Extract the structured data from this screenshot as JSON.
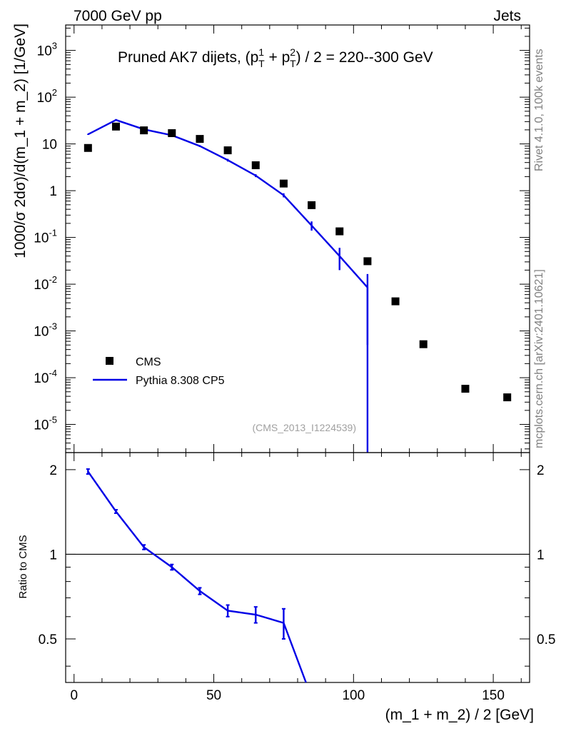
{
  "header": {
    "left": "7000 GeV pp",
    "right": "Jets"
  },
  "side_labels": {
    "top": "Rivet 4.1.0,  100k events",
    "bottom": "mcplots.cern.ch [arXiv:2401.10621]"
  },
  "colors": {
    "cms": "#000000",
    "pythia": "#0000e6",
    "frame": "#000000"
  },
  "chart_data": [
    {
      "type": "scatter",
      "title": "Pruned AK7 dijets, (p_T^1 + p_T^2) / 2 = 220--300 GeV",
      "title_parts": {
        "pre": "Pruned AK7 dijets, (p",
        "sup1": "1",
        "sub1": "T",
        "mid": " + p",
        "sup2": "2",
        "sub2": "T",
        "post": ") / 2 = 220--300 GeV"
      },
      "ylabel": "1000/σ   2dσ)/d(m_1 + m_2) [1/GeV]",
      "xlabel": "",
      "yscale": "log",
      "ylim": [
        2.5e-06,
        3500
      ],
      "xlim": [
        -3,
        163
      ],
      "y_tick_labels": [
        "10^-5",
        "10^-4",
        "10^-3",
        "10^-2",
        "10^-1",
        "1",
        "10",
        "10^2",
        "10^3"
      ],
      "annotation": "(CMS_2013_I1224539)",
      "legend": {
        "position": "lower-left",
        "entries": [
          "CMS",
          "Pythia 8.308 CP5"
        ]
      },
      "series": [
        {
          "name": "CMS",
          "style": "markers",
          "x": [
            5,
            15,
            25,
            35,
            45,
            55,
            65,
            75,
            85,
            95,
            105,
            115,
            125,
            140,
            155
          ],
          "y": [
            8.2,
            23.5,
            19.5,
            17.0,
            12.8,
            7.3,
            3.5,
            1.42,
            0.49,
            0.135,
            0.031,
            0.0043,
            0.00052,
            5.8e-05,
            3.8e-05
          ]
        },
        {
          "name": "Pythia 8.308 CP5",
          "style": "line",
          "x": [
            5,
            15,
            25,
            35,
            45,
            55,
            65,
            75,
            85,
            95,
            105,
            105
          ],
          "y": [
            16.0,
            32.5,
            20.5,
            15.3,
            9.0,
            4.5,
            2.1,
            0.8,
            0.18,
            0.04,
            0.0085,
            2.5e-06
          ],
          "err_low": [
            0.4,
            1.5,
            0.6,
            0.5,
            0.4,
            0.3,
            0.15,
            0.08,
            0.04,
            0.02,
            0.008,
            0
          ],
          "err_high": [
            0.4,
            1.5,
            0.6,
            0.5,
            0.4,
            0.3,
            0.15,
            0.08,
            0.04,
            0.02,
            0.008,
            0
          ]
        }
      ]
    },
    {
      "type": "line",
      "ylabel": "Ratio to CMS",
      "xlabel": "(m_1 + m_2) / 2 [GeV]",
      "xlim": [
        -3,
        163
      ],
      "ylim": [
        0.35,
        2.3
      ],
      "x_tick_labels": [
        "0",
        "50",
        "100",
        "150"
      ],
      "y_tick_labels": [
        "0.5",
        "1",
        "2"
      ],
      "reference_line": 1,
      "series": [
        {
          "name": "Pythia 8.308 CP5",
          "x": [
            5,
            15,
            25,
            35,
            45,
            55,
            65,
            75,
            83
          ],
          "y": [
            1.97,
            1.42,
            1.06,
            0.9,
            0.74,
            0.63,
            0.61,
            0.57,
            0.35
          ],
          "err": [
            0.04,
            0.02,
            0.02,
            0.02,
            0.02,
            0.03,
            0.04,
            0.07,
            0
          ]
        }
      ]
    }
  ]
}
